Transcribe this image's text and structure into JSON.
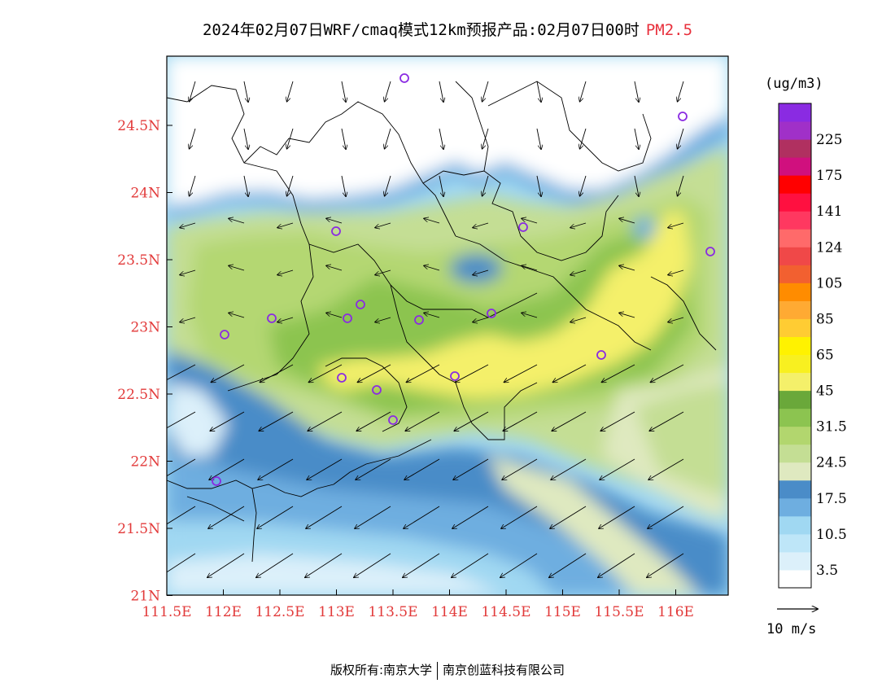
{
  "title": {
    "main": "2024年02月07日WRF/cmaq模式12km预报产品:02月07日00时",
    "pollutant": "PM2.5"
  },
  "map": {
    "lon_ticks": [
      "111.5E",
      "112E",
      "112.5E",
      "113E",
      "113.5E",
      "114E",
      "114.5E",
      "115E",
      "115.5E",
      "116E"
    ],
    "lat_ticks": [
      "24.5N",
      "24N",
      "23.5N",
      "23N",
      "22.5N",
      "22N",
      "21.5N",
      "21N"
    ],
    "axis_color": "#e23a3a"
  },
  "colorbar": {
    "unit": "(ug/m3)",
    "levels": [
      {
        "label": "",
        "color": "#ffffff"
      },
      {
        "label": "3.5",
        "color": "#dcf0fa"
      },
      {
        "label": "",
        "color": "#bee6f8"
      },
      {
        "label": "10.5",
        "color": "#a0d8f2"
      },
      {
        "label": "",
        "color": "#6eaee0"
      },
      {
        "label": "17.5",
        "color": "#4a8cc8"
      },
      {
        "label": "",
        "color": "#dfe9c0"
      },
      {
        "label": "24.5",
        "color": "#c4de94"
      },
      {
        "label": "",
        "color": "#b2d66e"
      },
      {
        "label": "31.5",
        "color": "#8cc450"
      },
      {
        "label": "",
        "color": "#6aa83a"
      },
      {
        "label": "45",
        "color": "#f4f06a"
      },
      {
        "label": "",
        "color": "#f8f020"
      },
      {
        "label": "65",
        "color": "#fff200"
      },
      {
        "label": "",
        "color": "#ffcc33"
      },
      {
        "label": "85",
        "color": "#ffaa33"
      },
      {
        "label": "",
        "color": "#ff8c00"
      },
      {
        "label": "105",
        "color": "#f26030"
      },
      {
        "label": "",
        "color": "#f04848"
      },
      {
        "label": "124",
        "color": "#ff6a6a"
      },
      {
        "label": "",
        "color": "#ff3860"
      },
      {
        "label": "141",
        "color": "#ff1040"
      },
      {
        "label": "",
        "color": "#ff0000"
      },
      {
        "label": "175",
        "color": "#d0107e"
      },
      {
        "label": "",
        "color": "#b03060"
      },
      {
        "label": "225",
        "color": "#a030c8"
      },
      {
        "label": "",
        "color": "#8a2be2"
      }
    ]
  },
  "wind_scale": {
    "label": "10 m/s"
  },
  "footer": {
    "left": "版权所有:南京大学",
    "right": "南京创蓝科技有限公司"
  }
}
